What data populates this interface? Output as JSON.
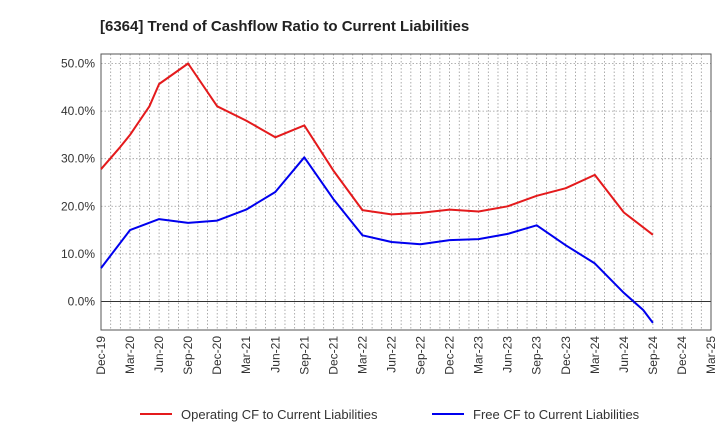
{
  "chart_data": {
    "type": "line",
    "title": "[6364]  Trend of Cashflow Ratio to Current Liabilities",
    "xlabel": "",
    "ylabel": "",
    "ylim": [
      -6,
      52
    ],
    "yticks": [
      0,
      10,
      20,
      30,
      40,
      50
    ],
    "ytick_labels": [
      "0.0%",
      "10.0%",
      "20.0%",
      "30.0%",
      "40.0%",
      "50.0%"
    ],
    "x_tick_labels": [
      "Dec-19",
      "Mar-20",
      "Jun-20",
      "Sep-20",
      "Dec-20",
      "Mar-21",
      "Jun-21",
      "Sep-21",
      "Dec-21",
      "Mar-22",
      "Jun-22",
      "Sep-22",
      "Dec-22",
      "Mar-23",
      "Jun-23",
      "Sep-23",
      "Dec-23",
      "Mar-24",
      "Jun-24",
      "Sep-24",
      "Dec-24",
      "Mar-25"
    ],
    "grid": true,
    "legend_position": "bottom",
    "series": [
      {
        "name": "Operating CF to Current Liabilities",
        "color": "#e41a1c",
        "points": [
          [
            "Dec-19",
            27.8
          ],
          [
            "Feb-20",
            32.5
          ],
          [
            "Mar-20",
            35.0
          ],
          [
            "May-20",
            41.0
          ],
          [
            "Jun-20",
            45.7
          ],
          [
            "Sep-20",
            50.0
          ],
          [
            "Dec-20",
            41.0
          ],
          [
            "Mar-21",
            38.0
          ],
          [
            "Jun-21",
            34.5
          ],
          [
            "Sep-21",
            37.0
          ],
          [
            "Dec-21",
            27.5
          ],
          [
            "Mar-22",
            19.2
          ],
          [
            "Jun-22",
            18.3
          ],
          [
            "Sep-22",
            18.6
          ],
          [
            "Dec-22",
            19.3
          ],
          [
            "Mar-23",
            18.9
          ],
          [
            "Jun-23",
            20.0
          ],
          [
            "Sep-23",
            22.2
          ],
          [
            "Dec-23",
            23.8
          ],
          [
            "Mar-24",
            26.6
          ],
          [
            "Jun-24",
            18.7
          ],
          [
            "Sep-24",
            14.0
          ]
        ]
      },
      {
        "name": "Free CF to Current Liabilities",
        "color": "#0000ee",
        "points": [
          [
            "Dec-19",
            7.0
          ],
          [
            "Mar-20",
            15.0
          ],
          [
            "Jun-20",
            17.3
          ],
          [
            "Sep-20",
            16.5
          ],
          [
            "Dec-20",
            17.0
          ],
          [
            "Mar-21",
            19.3
          ],
          [
            "Jun-21",
            23.0
          ],
          [
            "Sep-21",
            30.3
          ],
          [
            "Dec-21",
            21.5
          ],
          [
            "Mar-22",
            13.9
          ],
          [
            "Jun-22",
            12.5
          ],
          [
            "Sep-22",
            12.0
          ],
          [
            "Dec-22",
            12.9
          ],
          [
            "Mar-23",
            13.1
          ],
          [
            "Jun-23",
            14.2
          ],
          [
            "Sep-23",
            16.0
          ],
          [
            "Dec-23",
            11.8
          ],
          [
            "Mar-24",
            8.0
          ],
          [
            "Jun-24",
            1.8
          ],
          [
            "Aug-24",
            -1.8
          ],
          [
            "Sep-24",
            -4.5
          ]
        ]
      }
    ]
  }
}
